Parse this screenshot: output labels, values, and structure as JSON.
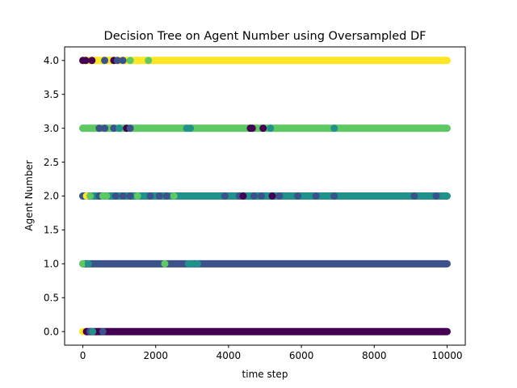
{
  "chart_data": {
    "type": "scatter",
    "title": "Decision Tree on Agent Number using Oversampled DF",
    "xlabel": "time step",
    "ylabel": "Agent Number",
    "xlim": [
      -500,
      10500
    ],
    "ylim": [
      -0.2,
      4.2
    ],
    "xticks": [
      0,
      2000,
      4000,
      6000,
      8000,
      10000
    ],
    "yticks": [
      0.0,
      0.5,
      1.0,
      1.5,
      2.0,
      2.5,
      3.0,
      3.5,
      4.0
    ],
    "xtick_labels": [
      "0",
      "2000",
      "4000",
      "6000",
      "8000",
      "10000"
    ],
    "ytick_labels": [
      "0.0",
      "0.5",
      "1.0",
      "1.5",
      "2.0",
      "2.5",
      "3.0",
      "3.5",
      "4.0"
    ],
    "grid": false,
    "colormap": "viridis",
    "class_colors": {
      "0": "#440154",
      "1": "#3b528b",
      "2": "#21918c",
      "3": "#5ec962",
      "4": "#fde725"
    },
    "x_range": [
      0,
      10000
    ],
    "agent_rows": [
      0,
      1,
      2,
      3,
      4
    ],
    "bands": [
      {
        "agent": 4,
        "predicted": 4,
        "x_start": 0,
        "x_end": 10000
      },
      {
        "agent": 3,
        "predicted": 3,
        "x_start": 0,
        "x_end": 10000
      },
      {
        "agent": 2,
        "predicted": 2,
        "x_start": 0,
        "x_end": 10000
      },
      {
        "agent": 1,
        "predicted": 1,
        "x_start": 0,
        "x_end": 10000
      },
      {
        "agent": 0,
        "predicted": 0,
        "x_start": 100,
        "x_end": 10000
      }
    ],
    "points": [
      {
        "agent": 4,
        "x": 0,
        "predicted": 0
      },
      {
        "agent": 4,
        "x": 80,
        "predicted": 0
      },
      {
        "agent": 4,
        "x": 250,
        "predicted": 0
      },
      {
        "agent": 4,
        "x": 600,
        "predicted": 1
      },
      {
        "agent": 4,
        "x": 850,
        "predicted": 0
      },
      {
        "agent": 4,
        "x": 950,
        "predicted": 1
      },
      {
        "agent": 4,
        "x": 1100,
        "predicted": 1
      },
      {
        "agent": 4,
        "x": 1300,
        "predicted": 3
      },
      {
        "agent": 4,
        "x": 1800,
        "predicted": 3
      },
      {
        "agent": 3,
        "x": 0,
        "predicted": 3
      },
      {
        "agent": 3,
        "x": 450,
        "predicted": 1
      },
      {
        "agent": 3,
        "x": 600,
        "predicted": 1
      },
      {
        "agent": 3,
        "x": 850,
        "predicted": 1
      },
      {
        "agent": 3,
        "x": 1000,
        "predicted": 2
      },
      {
        "agent": 3,
        "x": 1200,
        "predicted": 0
      },
      {
        "agent": 3,
        "x": 1300,
        "predicted": 1
      },
      {
        "agent": 3,
        "x": 2850,
        "predicted": 2
      },
      {
        "agent": 3,
        "x": 2950,
        "predicted": 2
      },
      {
        "agent": 3,
        "x": 4600,
        "predicted": 0
      },
      {
        "agent": 3,
        "x": 4650,
        "predicted": 0
      },
      {
        "agent": 3,
        "x": 4950,
        "predicted": 0
      },
      {
        "agent": 3,
        "x": 5150,
        "predicted": 2
      },
      {
        "agent": 3,
        "x": 6900,
        "predicted": 2
      },
      {
        "agent": 2,
        "x": 0,
        "predicted": 1
      },
      {
        "agent": 2,
        "x": 100,
        "predicted": 4
      },
      {
        "agent": 2,
        "x": 200,
        "predicted": 3
      },
      {
        "agent": 2,
        "x": 450,
        "predicted": 1
      },
      {
        "agent": 2,
        "x": 550,
        "predicted": 3
      },
      {
        "agent": 2,
        "x": 650,
        "predicted": 3
      },
      {
        "agent": 2,
        "x": 900,
        "predicted": 1
      },
      {
        "agent": 2,
        "x": 1100,
        "predicted": 1
      },
      {
        "agent": 2,
        "x": 1300,
        "predicted": 1
      },
      {
        "agent": 2,
        "x": 1500,
        "predicted": 3
      },
      {
        "agent": 2,
        "x": 1850,
        "predicted": 1
      },
      {
        "agent": 2,
        "x": 2100,
        "predicted": 1
      },
      {
        "agent": 2,
        "x": 2300,
        "predicted": 1
      },
      {
        "agent": 2,
        "x": 2500,
        "predicted": 3
      },
      {
        "agent": 2,
        "x": 3900,
        "predicted": 1
      },
      {
        "agent": 2,
        "x": 4300,
        "predicted": 1
      },
      {
        "agent": 2,
        "x": 4400,
        "predicted": 0
      },
      {
        "agent": 2,
        "x": 4700,
        "predicted": 1
      },
      {
        "agent": 2,
        "x": 4900,
        "predicted": 1
      },
      {
        "agent": 2,
        "x": 5200,
        "predicted": 0
      },
      {
        "agent": 2,
        "x": 5400,
        "predicted": 1
      },
      {
        "agent": 2,
        "x": 5900,
        "predicted": 1
      },
      {
        "agent": 2,
        "x": 6400,
        "predicted": 1
      },
      {
        "agent": 2,
        "x": 6900,
        "predicted": 1
      },
      {
        "agent": 2,
        "x": 9100,
        "predicted": 1
      },
      {
        "agent": 2,
        "x": 9700,
        "predicted": 1
      },
      {
        "agent": 1,
        "x": 0,
        "predicted": 3
      },
      {
        "agent": 1,
        "x": 150,
        "predicted": 2
      },
      {
        "agent": 1,
        "x": 2250,
        "predicted": 3
      },
      {
        "agent": 1,
        "x": 2900,
        "predicted": 2
      },
      {
        "agent": 1,
        "x": 3000,
        "predicted": 2
      },
      {
        "agent": 1,
        "x": 3150,
        "predicted": 2
      },
      {
        "agent": 0,
        "x": 0,
        "predicted": 4
      },
      {
        "agent": 0,
        "x": 100,
        "predicted": 0
      },
      {
        "agent": 0,
        "x": 200,
        "predicted": 1
      },
      {
        "agent": 0,
        "x": 270,
        "predicted": 2
      },
      {
        "agent": 0,
        "x": 550,
        "predicted": 1
      }
    ]
  }
}
